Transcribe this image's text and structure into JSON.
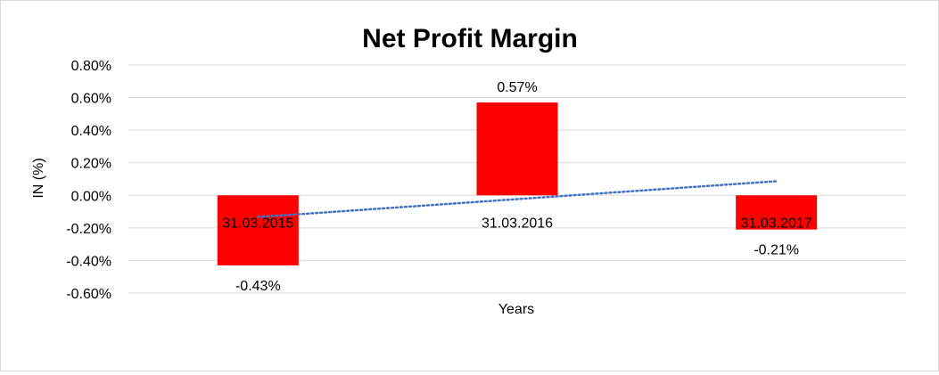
{
  "chart_data": {
    "type": "bar",
    "title": "Net Profit Margin",
    "xlabel": "Years",
    "ylabel": "IN (%)",
    "categories": [
      "31.03.2015",
      "31.03.2016",
      "31.03.2017"
    ],
    "values": [
      -0.43,
      0.57,
      -0.21
    ],
    "data_labels": [
      "-0.43%",
      "0.57%",
      "-0.21%"
    ],
    "yticks": [
      "0.80%",
      "0.60%",
      "0.40%",
      "0.20%",
      "0.00%",
      "-0.20%",
      "-0.40%",
      "-0.60%"
    ],
    "ylim": [
      -0.6,
      0.8
    ],
    "grid": true,
    "legend": "none",
    "trendline": {
      "type": "linear",
      "style": "dotted"
    },
    "colors": {
      "bar": "#ff0000",
      "trendline": "#4472c4",
      "grid": "#d9d9d9"
    }
  }
}
